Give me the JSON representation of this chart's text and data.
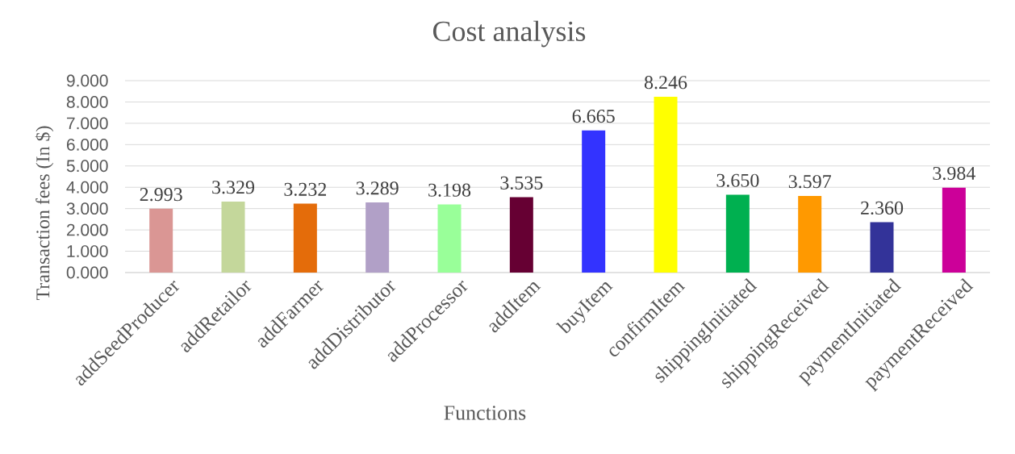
{
  "chart_data": {
    "type": "bar",
    "title": "Cost analysis",
    "xlabel": "Functions",
    "ylabel": "Transaction fees (In $)",
    "categories": [
      "addSeedProducer",
      "addRetailor",
      "addFarmer",
      "addDistributor",
      "addProcessor",
      "addItem",
      "buyItem",
      "confirmItem",
      "shippingInitiated",
      "shippingReceived",
      "paymentInitiated",
      "paymentReceived"
    ],
    "values": [
      2.993,
      3.329,
      3.232,
      3.289,
      3.198,
      3.535,
      6.665,
      8.246,
      3.65,
      3.597,
      2.36,
      3.984
    ],
    "value_labels": [
      "2.993",
      "3.329",
      "3.232",
      "3.289",
      "3.198",
      "3.535",
      "6.665",
      "8.246",
      "3.650",
      "3.597",
      "2.360",
      "3.984"
    ],
    "colors": [
      "#da9694",
      "#c4d79b",
      "#e46c0a",
      "#b1a0c7",
      "#99ff99",
      "#660033",
      "#3333ff",
      "#ffff00",
      "#00b050",
      "#ff9900",
      "#333399",
      "#cc0099"
    ],
    "ylim": [
      0,
      9
    ],
    "yticks": [
      {
        "value": 0,
        "label": "0.000"
      },
      {
        "value": 1,
        "label": "1.000"
      },
      {
        "value": 2,
        "label": "2.000"
      },
      {
        "value": 3,
        "label": "3.000"
      },
      {
        "value": 4,
        "label": "4.000"
      },
      {
        "value": 5,
        "label": "5.000"
      },
      {
        "value": 6,
        "label": "6.000"
      },
      {
        "value": 7,
        "label": "7.000"
      },
      {
        "value": 8,
        "label": "8.000"
      },
      {
        "value": 9,
        "label": "9.000"
      }
    ],
    "grid": "y"
  }
}
